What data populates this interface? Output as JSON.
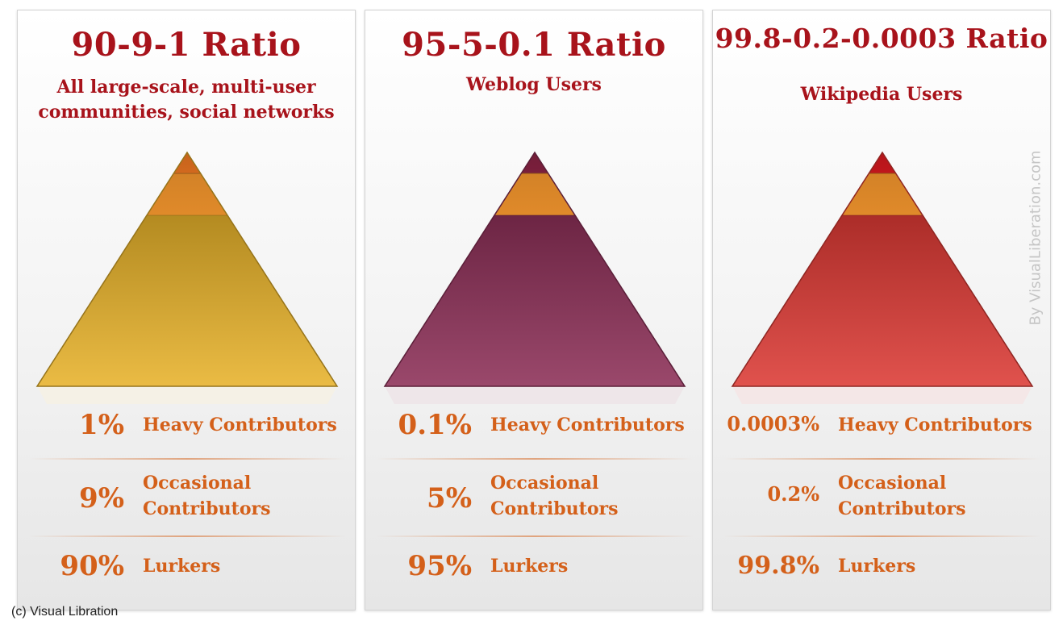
{
  "chart_data": [
    {
      "type": "pyramid",
      "title": "90-9-1 Ratio",
      "subtitle": [
        "All large-scale, multi-user",
        "communities, social networks"
      ],
      "segments": [
        {
          "percent_label": "1%",
          "value": 1,
          "label": [
            "Heavy Contributors"
          ],
          "color": "#d2691e"
        },
        {
          "percent_label": "9%",
          "value": 9,
          "label": [
            "Occasional",
            "Contributors"
          ],
          "color": "#e08a2a"
        },
        {
          "percent_label": "90%",
          "value": 90,
          "label": [
            "Lurkers"
          ],
          "color": "#e7b22a"
        }
      ]
    },
    {
      "type": "pyramid",
      "title": "95-5-0.1 Ratio",
      "subtitle": [
        "Weblog Users"
      ],
      "segments": [
        {
          "percent_label": "0.1%",
          "value": 0.1,
          "label": [
            "Heavy Contributors"
          ],
          "color": "#7a1f3c"
        },
        {
          "percent_label": "5%",
          "value": 5,
          "label": [
            "Occasional",
            "Contributors"
          ],
          "color": "#e08a2a"
        },
        {
          "percent_label": "95%",
          "value": 95,
          "label": [
            "Lurkers"
          ],
          "color": "#8c2f57"
        }
      ]
    },
    {
      "type": "pyramid",
      "title": "99.8-0.2-0.0003 Ratio",
      "subtitle": [
        "Wikipedia Users"
      ],
      "segments": [
        {
          "percent_label": "0.0003%",
          "value": 0.0003,
          "label": [
            "Heavy Contributors"
          ],
          "color": "#c0161c"
        },
        {
          "percent_label": "0.2%",
          "value": 0.2,
          "label": [
            "Occasional",
            "Contributors"
          ],
          "color": "#e08a2a"
        },
        {
          "percent_label": "99.8%",
          "value": 99.8,
          "label": [
            "Lurkers"
          ],
          "color": "#dc3a35"
        }
      ]
    }
  ],
  "watermark": "By VisualLiberation.com",
  "copyright": "(c) Visual Libration"
}
